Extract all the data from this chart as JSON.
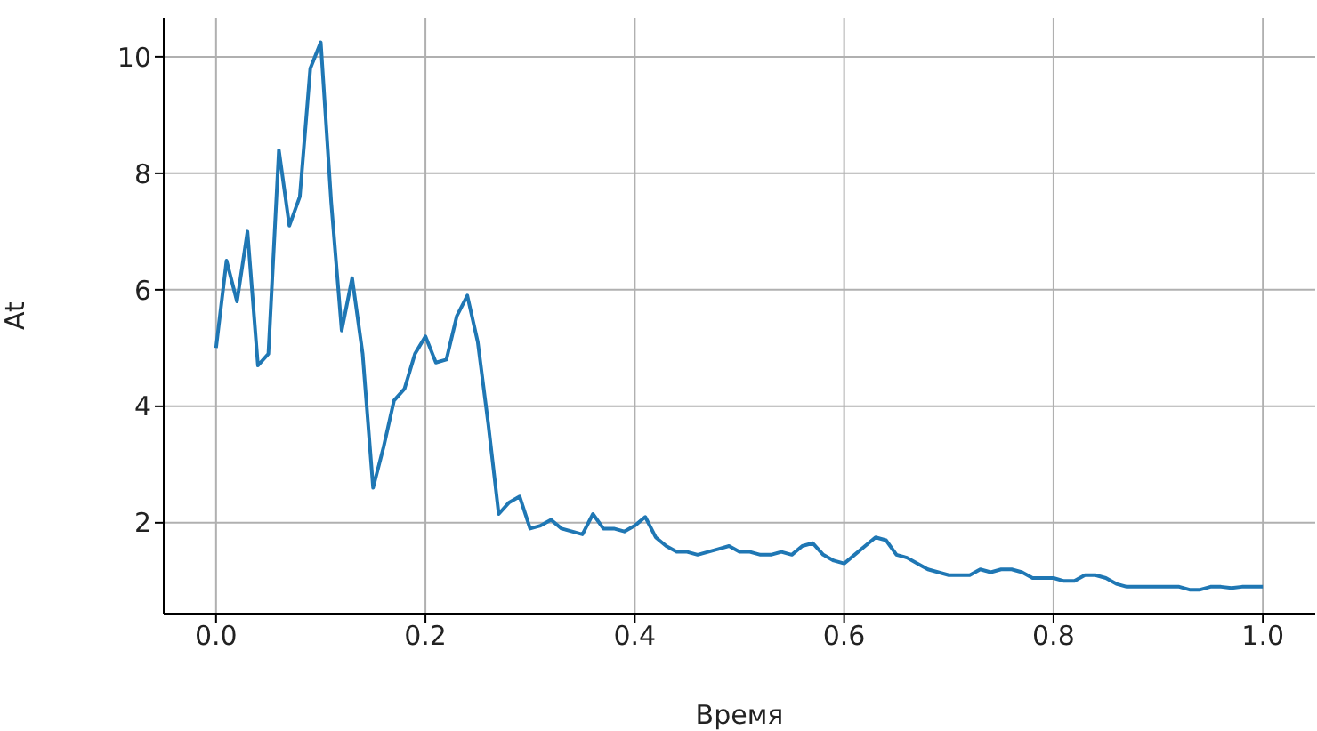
{
  "chart_data": {
    "type": "line",
    "xlabel": "Время",
    "ylabel": "At",
    "x": [
      0,
      0.01,
      0.02,
      0.03,
      0.04,
      0.05,
      0.06,
      0.07,
      0.08,
      0.09,
      0.1,
      0.11,
      0.12,
      0.13,
      0.14,
      0.15,
      0.16,
      0.17,
      0.18,
      0.19,
      0.2,
      0.21,
      0.22,
      0.23,
      0.24,
      0.25,
      0.26,
      0.27,
      0.28,
      0.29,
      0.3,
      0.31,
      0.32,
      0.33,
      0.34,
      0.35,
      0.36,
      0.37,
      0.38,
      0.39,
      0.4,
      0.41,
      0.42,
      0.43,
      0.44,
      0.45,
      0.46,
      0.47,
      0.48,
      0.49,
      0.5,
      0.51,
      0.52,
      0.53,
      0.54,
      0.55,
      0.56,
      0.57,
      0.58,
      0.59,
      0.6,
      0.61,
      0.62,
      0.63,
      0.64,
      0.65,
      0.66,
      0.67,
      0.68,
      0.69,
      0.7,
      0.71,
      0.72,
      0.73,
      0.74,
      0.75,
      0.76,
      0.77,
      0.78,
      0.79,
      0.8,
      0.81,
      0.82,
      0.83,
      0.84,
      0.85,
      0.86,
      0.87,
      0.88,
      0.89,
      0.9,
      0.91,
      0.92,
      0.93,
      0.94,
      0.95,
      0.96,
      0.97,
      0.98,
      0.99,
      1.0
    ],
    "series": [
      {
        "color": "#1f77b4",
        "values": [
          5.0,
          6.5,
          5.8,
          7.0,
          4.7,
          4.9,
          8.4,
          7.1,
          7.6,
          9.8,
          10.25,
          7.5,
          5.3,
          6.2,
          4.9,
          2.6,
          3.3,
          4.1,
          4.3,
          4.9,
          5.2,
          4.75,
          4.8,
          5.55,
          5.9,
          5.1,
          3.7,
          2.15,
          2.35,
          2.45,
          1.9,
          1.95,
          2.05,
          1.9,
          1.85,
          1.8,
          2.15,
          1.9,
          1.9,
          1.85,
          1.95,
          2.1,
          1.75,
          1.6,
          1.5,
          1.5,
          1.45,
          1.5,
          1.55,
          1.6,
          1.5,
          1.5,
          1.45,
          1.45,
          1.5,
          1.45,
          1.6,
          1.65,
          1.45,
          1.35,
          1.3,
          1.45,
          1.6,
          1.75,
          1.7,
          1.45,
          1.4,
          1.3,
          1.2,
          1.15,
          1.1,
          1.1,
          1.1,
          1.2,
          1.15,
          1.2,
          1.2,
          1.15,
          1.05,
          1.05,
          1.05,
          1.0,
          1.0,
          1.1,
          1.1,
          1.05,
          0.95,
          0.9,
          0.9,
          0.9,
          0.9,
          0.9,
          0.9,
          0.85,
          0.85,
          0.9,
          0.9,
          0.88,
          0.9,
          0.9,
          0.9
        ]
      }
    ],
    "xlim": [
      -0.05,
      1.05
    ],
    "xticks": [
      {
        "value": 0,
        "label": "0.0"
      },
      {
        "value": 0.2,
        "label": "0.2"
      },
      {
        "value": 0.4,
        "label": "0.4"
      },
      {
        "value": 0.6,
        "label": "0.6"
      },
      {
        "value": 0.8,
        "label": "0.8"
      },
      {
        "value": 1,
        "label": "1.0"
      }
    ],
    "ylim": [
      0.44,
      10.67
    ],
    "yticks": [
      2,
      4,
      6,
      8,
      10
    ],
    "grid": true,
    "marker": "none",
    "line_style": "solid"
  }
}
